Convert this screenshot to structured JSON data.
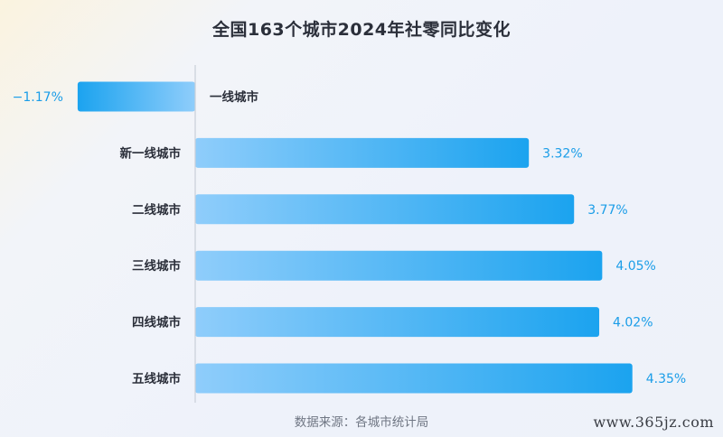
{
  "chart_data": {
    "type": "bar",
    "orientation": "horizontal",
    "title": "全国163个城市2024年社零同比变化",
    "categories": [
      "一线城市",
      "新一线城市",
      "二线城市",
      "三线城市",
      "四线城市",
      "五线城市"
    ],
    "values": [
      -1.17,
      3.32,
      3.77,
      4.05,
      4.02,
      4.35
    ],
    "value_labels": [
      "−1.17%",
      "3.32%",
      "3.77%",
      "4.05%",
      "4.02%",
      "4.35%"
    ],
    "xlim": [
      -1.5,
      4.6
    ],
    "unit": "%",
    "grid": false,
    "legend": "none",
    "colors": {
      "bar_light": "#8fcdfb",
      "bar_dark": "#1ba3ef",
      "value_text": "#1a9de8",
      "zero_line": "#c9cfd8"
    }
  },
  "source": "数据来源：各城市统计局",
  "watermark": "www.365jz.com"
}
